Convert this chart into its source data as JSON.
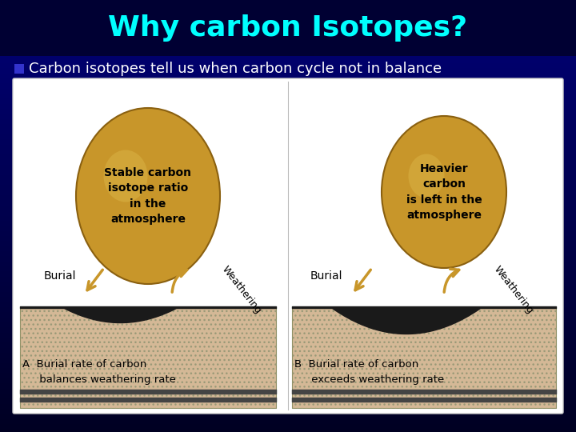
{
  "title": "Why carbon Isotopes?",
  "title_color": "#00FFFF",
  "title_fontsize": 26,
  "bullet_text": "Carbon isotopes tell us when carbon cycle not in balance",
  "bullet_color": "#FFFFFF",
  "bullet_fontsize": 13,
  "slide_bg": "#1a1aff",
  "bg_top": "#000044",
  "bg_bottom": "#000088",
  "content_bg": "#ffffff",
  "ball_color": "#c8962a",
  "ball_highlight": "#ddb84a",
  "ball_text_left": "Stable carbon\nisotope ratio\nin the\natmosphere",
  "ball_text_right": "Heavier\ncarbon\nis left in the\natmosphere",
  "burial_label": "Burial",
  "weathering_label": "Weathering",
  "caption_A": "A  Burial rate of carbon\n     balances weathering rate",
  "caption_B": "B  Burial rate of carbon\n     exceeds weathering rate",
  "arrow_color": "#c8962a",
  "ground_tan": "#d4b896",
  "ground_dark": "#1a1a1a",
  "ground_stripe": "#444444",
  "bullet_square_color": "#3333cc",
  "separator_color": "#bbbbbb"
}
